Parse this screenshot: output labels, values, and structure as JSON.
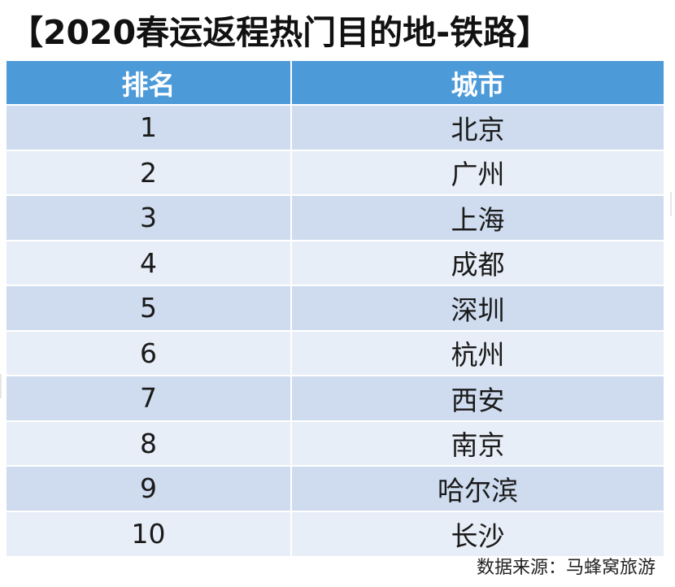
{
  "title": "【2020春运返程热门目的地-铁路】",
  "table": {
    "headers": {
      "rank": "排名",
      "city": "城市"
    },
    "rows": [
      {
        "rank": "1",
        "city": "北京"
      },
      {
        "rank": "2",
        "city": "广州"
      },
      {
        "rank": "3",
        "city": "上海"
      },
      {
        "rank": "4",
        "city": "成都"
      },
      {
        "rank": "5",
        "city": "深圳"
      },
      {
        "rank": "6",
        "city": "杭州"
      },
      {
        "rank": "7",
        "city": "西安"
      },
      {
        "rank": "8",
        "city": "南京"
      },
      {
        "rank": "9",
        "city": "哈尔滨"
      },
      {
        "rank": "10",
        "city": "长沙"
      }
    ]
  },
  "source": "数据来源：马蜂窝旅游",
  "colors": {
    "header_bg": "#4d9ad9",
    "row_dark": "#cfdcef",
    "row_light": "#e8eef7"
  }
}
